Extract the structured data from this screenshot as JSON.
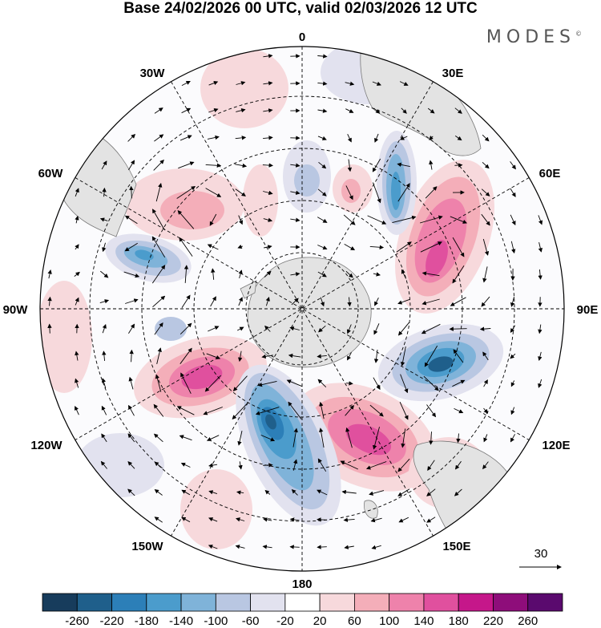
{
  "title": "Base 24/02/2026 00 UTC, valid 02/03/2026 12 UTC",
  "brand": "MODES",
  "brand_mark": "©",
  "map": {
    "projection": "south polar stereographic",
    "longitude_labels": [
      "0",
      "30E",
      "60E",
      "90E",
      "120E",
      "150E",
      "180",
      "150W",
      "120W",
      "90W",
      "60W",
      "30W"
    ],
    "vector_reference": {
      "value": "30"
    }
  },
  "colorbar": {
    "ticks": [
      "-260",
      "-220",
      "-180",
      "-140",
      "-100",
      "-60",
      "-20",
      "20",
      "60",
      "100",
      "140",
      "180",
      "220",
      "260"
    ],
    "colors": [
      "#173c5c",
      "#1f5f8b",
      "#2c7fb8",
      "#4b9ccc",
      "#7fb3d9",
      "#b9c7e2",
      "#e2e2ef",
      "#ffffff",
      "#f7d9dc",
      "#f4aeb9",
      "#ee82ab",
      "#e0509e",
      "#c5178a",
      "#8e0d7a",
      "#5a0a6e"
    ]
  },
  "anomalies": [
    {
      "name": "se-pacific-positive",
      "value": 180
    },
    {
      "name": "ross-sea-negative",
      "value": -220
    },
    {
      "name": "indian-ocean-negative",
      "value": -200
    },
    {
      "name": "sw-indian-positive",
      "value": 160
    },
    {
      "name": "tasman-positive",
      "value": 160
    },
    {
      "name": "drake-passage-negative",
      "value": -140
    },
    {
      "name": "south-atlantic-negative",
      "value": -120
    }
  ]
}
